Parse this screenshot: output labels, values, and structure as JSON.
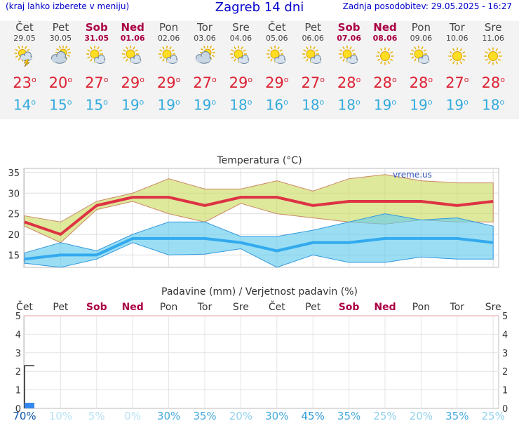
{
  "header": {
    "subtitle_left": "(kraj lahko izberete v meniju)",
    "title": "Zagreb 14 dni",
    "updated": "Zadnja posodobitev: 29.05.2025 - 16:27"
  },
  "degree_symbol": "o",
  "days": [
    {
      "name": "Čet",
      "date": "29.05",
      "weekend": false,
      "icon": "sun-cloud-storm-icon",
      "tmax": "23",
      "tmin": "14"
    },
    {
      "name": "Pet",
      "date": "30.05",
      "weekend": false,
      "icon": "sun-behind-cloud-icon",
      "tmax": "20",
      "tmin": "15"
    },
    {
      "name": "Sob",
      "date": "31.05",
      "weekend": true,
      "icon": "sun-small-cloud-icon",
      "tmax": "27",
      "tmin": "15"
    },
    {
      "name": "Ned",
      "date": "01.06",
      "weekend": true,
      "icon": "sun-small-cloud-icon",
      "tmax": "29",
      "tmin": "19"
    },
    {
      "name": "Pon",
      "date": "02.06",
      "weekend": false,
      "icon": "sun-small-cloud-icon",
      "tmax": "29",
      "tmin": "19"
    },
    {
      "name": "Tor",
      "date": "03.06",
      "weekend": false,
      "icon": "sun-behind-cloud-icon",
      "tmax": "27",
      "tmin": "19"
    },
    {
      "name": "Sre",
      "date": "04.06",
      "weekend": false,
      "icon": "sun-small-cloud-icon",
      "tmax": "29",
      "tmin": "18"
    },
    {
      "name": "Čet",
      "date": "05.06",
      "weekend": false,
      "icon": "sun-small-cloud-icon",
      "tmax": "29",
      "tmin": "16"
    },
    {
      "name": "Pet",
      "date": "06.06",
      "weekend": false,
      "icon": "sun-small-cloud-icon",
      "tmax": "27",
      "tmin": "18"
    },
    {
      "name": "Sob",
      "date": "07.06",
      "weekend": true,
      "icon": "sun-small-cloud-icon",
      "tmax": "28",
      "tmin": "18"
    },
    {
      "name": "Ned",
      "date": "08.06",
      "weekend": true,
      "icon": "sun-icon",
      "tmax": "28",
      "tmin": "19"
    },
    {
      "name": "Pon",
      "date": "09.06",
      "weekend": false,
      "icon": "sun-small-cloud-icon",
      "tmax": "28",
      "tmin": "19"
    },
    {
      "name": "Tor",
      "date": "10.06",
      "weekend": false,
      "icon": "sun-icon",
      "tmax": "27",
      "tmin": "19"
    },
    {
      "name": "Sre",
      "date": "11.06",
      "weekend": false,
      "icon": "sun-icon",
      "tmax": "28",
      "tmin": "18"
    }
  ],
  "colors": {
    "accent_title": "#0000cc",
    "weekend": "#aa0044",
    "tmax": "#dd2233",
    "tmin": "#33aadd"
  },
  "chart_data": [
    {
      "type": "line",
      "title": "Temperatura (°C)",
      "watermark": "vreme.us",
      "categories": [
        "Čet",
        "Pet",
        "Sob",
        "Ned",
        "Pon",
        "Tor",
        "Sre",
        "Čet",
        "Pet",
        "Sob",
        "Ned",
        "Pon",
        "Tor",
        "Sre"
      ],
      "ylim": [
        12,
        36
      ],
      "yticks": [
        15,
        20,
        25,
        30,
        35
      ],
      "grid": true,
      "series": [
        {
          "role": "tmax-mean",
          "color": "#dd3344",
          "values": [
            23,
            20,
            27,
            29,
            29,
            27,
            29,
            29,
            27,
            28,
            28,
            28,
            27,
            28
          ]
        },
        {
          "role": "tmax-upper",
          "values": [
            24.5,
            23,
            28,
            30,
            33.5,
            31,
            31,
            33,
            30.5,
            33.5,
            34.5,
            33,
            32.5,
            32.5
          ]
        },
        {
          "role": "tmax-lower",
          "values": [
            22,
            18,
            26,
            28,
            25,
            23,
            27.5,
            25,
            24,
            23,
            22.5,
            23.5,
            23,
            23
          ]
        },
        {
          "role": "tmin-mean",
          "color": "#33aaee",
          "values": [
            14,
            15,
            15,
            19,
            19,
            19,
            18,
            16,
            18,
            18,
            19,
            19,
            19,
            18
          ]
        },
        {
          "role": "tmin-upper",
          "values": [
            15.5,
            18,
            16,
            20,
            23,
            23,
            19.5,
            19.5,
            21,
            23,
            25,
            23.5,
            24,
            22
          ]
        },
        {
          "role": "tmin-lower",
          "values": [
            13,
            12,
            14,
            18,
            15,
            15.2,
            16.5,
            12,
            15,
            13.2,
            13.2,
            14.5,
            14,
            14
          ]
        }
      ]
    },
    {
      "type": "bar",
      "title": "Padavine (mm) / Verjetnost padavin (%)",
      "categories": [
        "Čet",
        "Pet",
        "Sob",
        "Ned",
        "Pon",
        "Tor",
        "Sre",
        "Čet",
        "Pet",
        "Sob",
        "Ned",
        "Pon",
        "Tor",
        "Sre"
      ],
      "ylim": [
        0,
        5
      ],
      "yticks": [
        0,
        1,
        2,
        3,
        4,
        5
      ],
      "grid": true,
      "precip_mm": [
        0.15,
        0,
        0,
        0,
        0,
        0,
        0,
        0,
        0,
        0,
        0,
        0,
        0,
        0
      ],
      "precip_upper_mm": [
        2.3,
        0,
        0,
        0,
        0,
        0,
        0,
        0,
        0,
        0,
        0,
        0,
        0,
        0
      ],
      "probability_labels": [
        "70%",
        "10%",
        "5%",
        "0%",
        "30%",
        "35%",
        "20%",
        "30%",
        "45%",
        "35%",
        "25%",
        "20%",
        "35%",
        "25%"
      ],
      "probability_values": [
        70,
        10,
        5,
        0,
        30,
        35,
        20,
        30,
        45,
        35,
        25,
        20,
        35,
        25
      ]
    }
  ]
}
